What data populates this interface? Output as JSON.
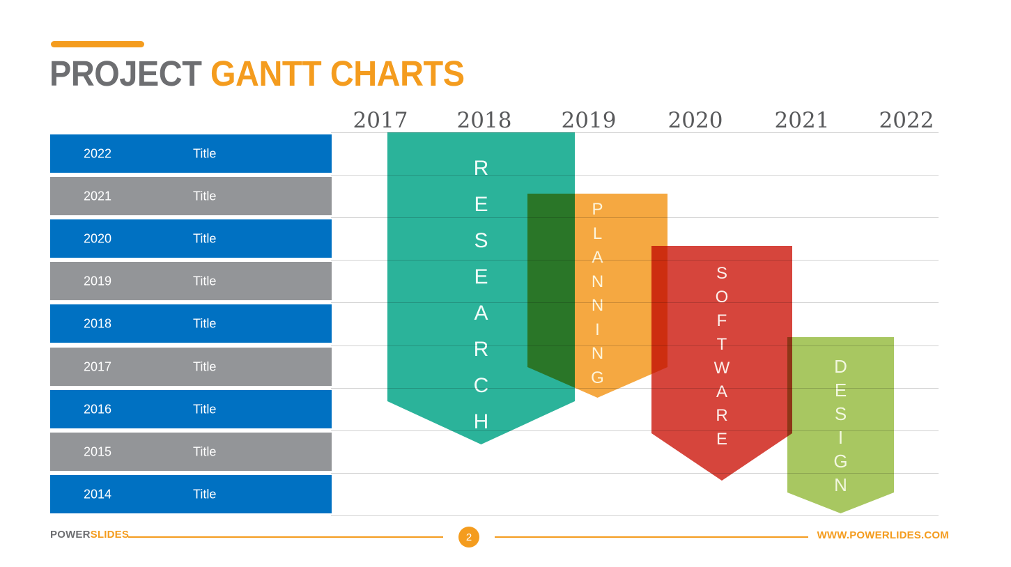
{
  "slide_title": {
    "part1": "PROJECT",
    "part2": "GANTT CHARTS"
  },
  "colors": {
    "accent_orange": "#F49C1E",
    "title_gray": "#6D6E71",
    "axis_label_gray": "#58595B",
    "gridline_gray": "#D2D2D2",
    "row_blue": "#0071C2",
    "row_gray": "#939598",
    "row_text_white": "#FFFFFF"
  },
  "chart_data": {
    "type": "gantt",
    "title": "PROJECT GANTT CHARTS",
    "x_axis": {
      "labels": [
        "2017",
        "2018",
        "2019",
        "2020",
        "2021",
        "2022"
      ],
      "range": [
        2017,
        2022
      ],
      "gridlines": true
    },
    "left_table_rows": [
      {
        "year": "2022",
        "label": "Title",
        "fill": "#0071C2"
      },
      {
        "year": "2021",
        "label": "Title",
        "fill": "#939598"
      },
      {
        "year": "2020",
        "label": "Title",
        "fill": "#0071C2"
      },
      {
        "year": "2019",
        "label": "Title",
        "fill": "#939598"
      },
      {
        "year": "2018",
        "label": "Title",
        "fill": "#0071C2"
      },
      {
        "year": "2017",
        "label": "Title",
        "fill": "#939598"
      },
      {
        "year": "2016",
        "label": "Title",
        "fill": "#0071C2"
      },
      {
        "year": "2015",
        "label": "Title",
        "fill": "#939598"
      },
      {
        "year": "2014",
        "label": "Title",
        "fill": "#0071C2"
      }
    ],
    "tasks": [
      {
        "id": "research",
        "label": "RESEARCH",
        "start_year": 2017.1,
        "end_year": 2018.9,
        "color": "#2BB39A",
        "text_color": "#F3FCF9"
      },
      {
        "id": "planning",
        "label": "PLANNING",
        "start_year": 2018.4,
        "end_year": 2019.7,
        "color": "#F5A841",
        "text_color": "#FDF5DC"
      },
      {
        "id": "software",
        "label": "SOFTWARE",
        "start_year": 2019.6,
        "end_year": 2020.9,
        "color": "#D6453C",
        "text_color": "#FCEFEB"
      },
      {
        "id": "design",
        "label": "DESIGN",
        "start_year": 2020.9,
        "end_year": 2021.9,
        "color": "#A8C761",
        "text_color": "#F2F7DF"
      }
    ]
  },
  "footer": {
    "brand_part1": "POWER",
    "brand_part2": "SLIDES",
    "page_number": "2",
    "website": "WWW.POWERLIDES.COM"
  }
}
